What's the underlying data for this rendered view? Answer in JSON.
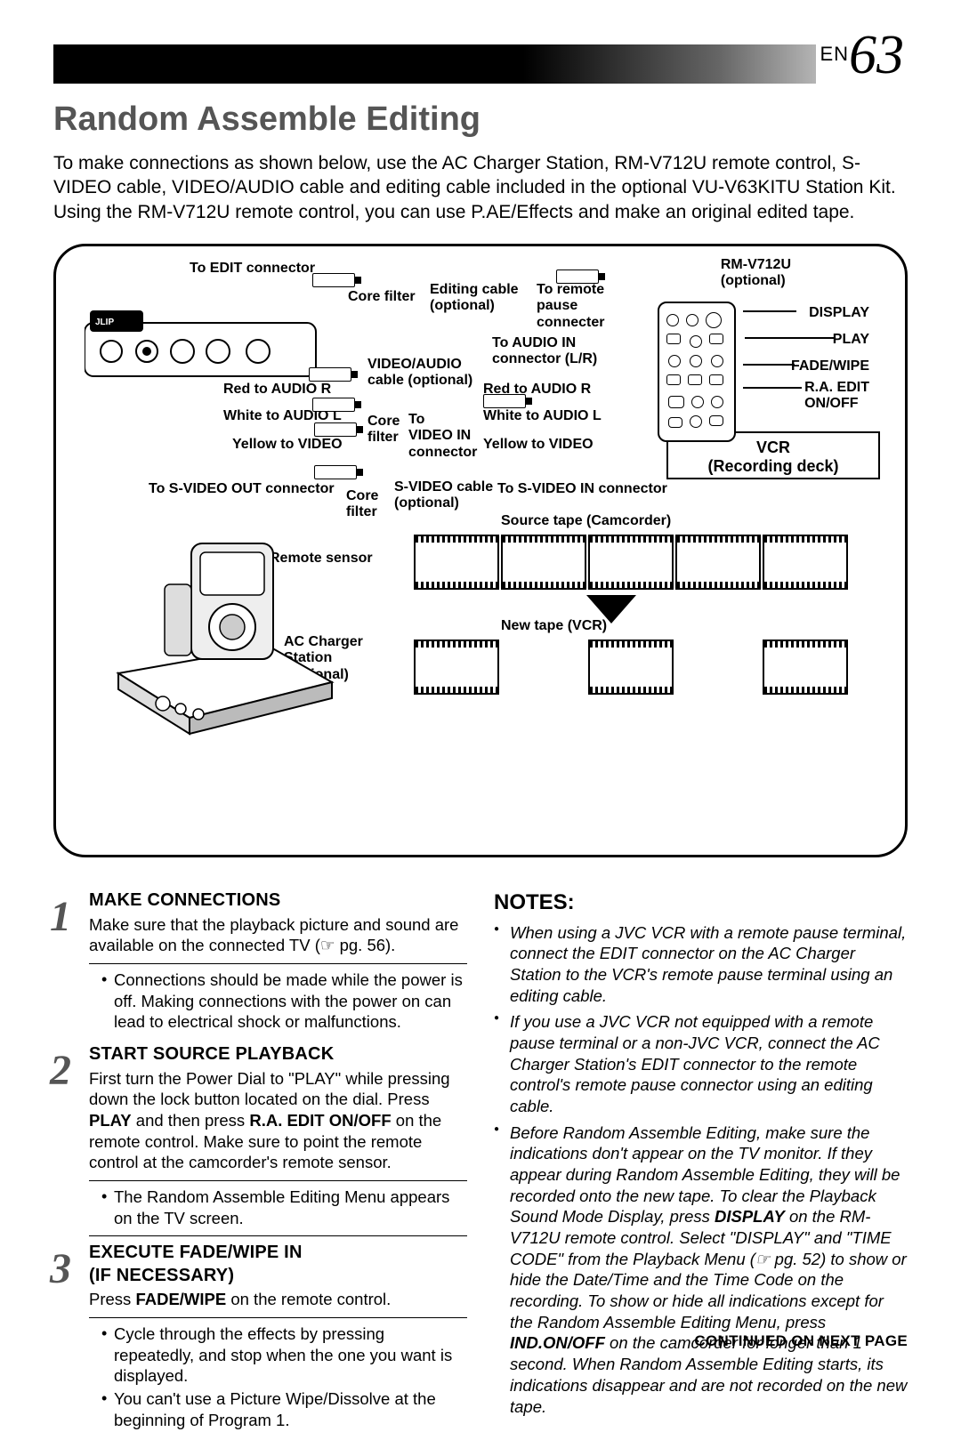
{
  "page": {
    "lang_prefix": "EN",
    "number": "63"
  },
  "title": "Random Assemble Editing",
  "intro_lines": [
    "To make connections as shown below, use the AC Charger Station, RM-V712U remote control, S-VIDEO cable, VIDEO/AUDIO cable and editing cable included in the optional VU-V63KITU Station Kit.",
    "Using the RM-V712U remote control, you can use P.AE/Effects and make an original edited tape."
  ],
  "diagram": {
    "labels": {
      "to_edit_connector": "To EDIT connector",
      "core_filter_1": "Core filter",
      "editing_cable": "Editing cable\n(optional)",
      "to_remote_pause": "To remote\npause\nconnecter",
      "rm_v712u": "RM-V712U\n(optional)",
      "display": "DISPLAY",
      "play": "PLAY",
      "fade_wipe": "FADE/WIPE",
      "ra_edit": "R.A. EDIT\nON/OFF",
      "video_audio_cable": "VIDEO/AUDIO\ncable (optional)",
      "to_audio_in": "To AUDIO IN\nconnector (L/R)",
      "red_audio_r_1": "Red to AUDIO R",
      "red_audio_r_2": "Red to AUDIO R",
      "white_audio_l_1": "White to AUDIO L",
      "white_audio_l_2": "White to AUDIO L",
      "core_filter_2": "Core\nfilter",
      "yellow_video_1": "Yellow to VIDEO",
      "yellow_video_2": "Yellow to VIDEO",
      "to_video_in": "To\nVIDEO IN\nconnector",
      "to_svideo_out": "To S-VIDEO OUT connector",
      "svideo_cable": "S-VIDEO cable\n(optional)",
      "core_filter_3": "Core\nfilter",
      "to_svideo_in": "To S-VIDEO IN connector",
      "vcr_box_line1": "VCR",
      "vcr_box_line2": "(Recording deck)",
      "source_tape": "Source tape (Camcorder)",
      "new_tape": "New tape (VCR)",
      "remote_sensor": "Remote sensor",
      "ac_charger": "AC Charger\nStation\n(optional)"
    }
  },
  "steps": [
    {
      "num": "1",
      "title": "MAKE CONNECTIONS",
      "body": "Make sure that the playback picture and sound are available on the connected TV (☞ pg. 56).",
      "bullets": [
        "Connections should be made while the power is off. Making connections with the power on can lead to electrical shock or malfunctions."
      ]
    },
    {
      "num": "2",
      "title": "START SOURCE PLAYBACK",
      "body": "First turn the Power Dial to \"PLAY\" while pressing down the lock button located on the dial. Press <b>PLAY</b> and then press <b>R.A. EDIT ON/OFF</b> on the remote control. Make sure to point the remote control at the camcorder's remote sensor.",
      "bullets": [
        "The Random Assemble Editing Menu appears on the TV screen."
      ]
    },
    {
      "num": "3",
      "title": "EXECUTE FADE/WIPE IN\n(IF NECESSARY)",
      "body": "Press <b>FADE/WIPE</b> on the remote control.",
      "bullets": [
        "Cycle through the effects by pressing repeatedly, and stop when the one you want is displayed.",
        "You can't use a Picture Wipe/Dissolve at the beginning of Program 1."
      ]
    }
  ],
  "notes": {
    "heading": "NOTES:",
    "items": [
      "When using a JVC VCR with a remote pause terminal, connect the EDIT connector on the AC Charger Station to the VCR's remote pause terminal using an editing cable.",
      "If you use a JVC VCR not equipped with a remote pause terminal or a non-JVC VCR, connect the AC Charger Station's EDIT connector to the remote control's remote pause connector using an editing cable.",
      "Before Random Assemble Editing, make sure the indications don't appear on the TV monitor. If they appear during Random Assemble Editing, they will be recorded onto the new tape. To clear the Playback Sound Mode Display, press <b>DISPLAY</b> on the RM-V712U remote control. Select \"DISPLAY\" and \"TIME CODE\" from the Playback Menu (☞ pg. 52) to show or hide the Date/Time and the Time Code on the recording. To show or hide all indications except for the Random Assemble Editing Menu, press <b>IND.ON/OFF</b> on the camcorder for longer than 1 second. When Random Assemble Editing starts, its indications disappear and are not recorded on the new tape."
    ]
  },
  "continued": "CONTINUED ON NEXT PAGE"
}
